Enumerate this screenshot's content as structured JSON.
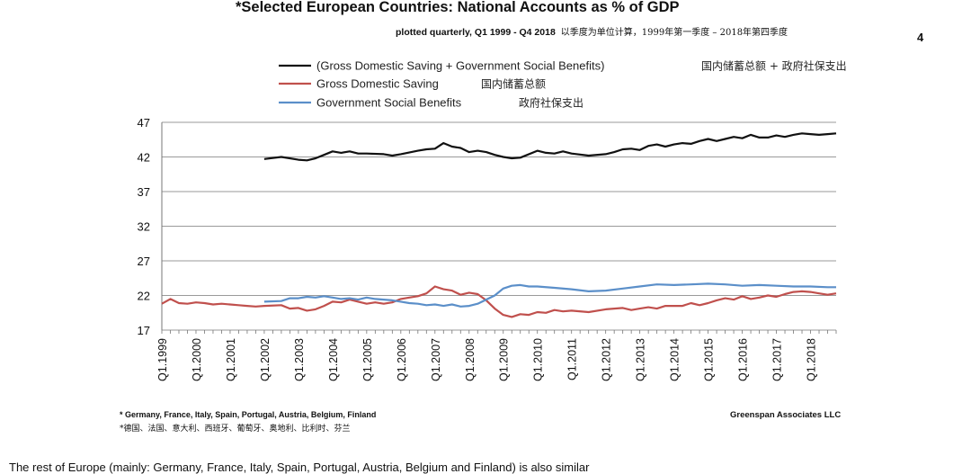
{
  "page": {
    "title": "*Selected European Countries: National Accounts as % of GDP",
    "subtitle_en": "plotted quarterly, Q1 1999 - Q4 2018",
    "subtitle_zh": "以季度为单位计算，1999年第一季度 – 2018年第四季度",
    "page_number": "4",
    "footnote_en": "* Germany, France, Italy, Spain, Portugal, Austria, Belgium, Finland",
    "footnote_zh": "*德国、法国、意大利、西班牙、葡萄牙、奥地利、比利时、芬兰",
    "source": "Greenspan Associates LLC",
    "caption": "The rest of Europe (mainly: Germany, France, Italy, Spain, Portugal, Austria, Belgium and Finland) is also similar"
  },
  "chart_data": {
    "type": "line",
    "title": "*Selected European Countries: National Accounts as % of GDP",
    "xlabel": "",
    "ylabel": "",
    "ylim": [
      17,
      47
    ],
    "yticks": [
      "47",
      "42",
      "37",
      "32",
      "27",
      "22",
      "17"
    ],
    "xticks": [
      "Q1.1999",
      "Q1.2000",
      "Q1.2001",
      "Q1.2002",
      "Q1.2003",
      "Q1.2004",
      "Q1.2005",
      "Q1.2006",
      "Q1.2007",
      "Q1.2008",
      "Q1.2009",
      "Q1.2010",
      "Q1.2011",
      "Q1.2012",
      "Q1.2013",
      "Q1.2014",
      "Q1.2015",
      "Q1.2016",
      "Q1.2017",
      "Q1.2018"
    ],
    "legend_position": "top-left",
    "grid": true,
    "series": [
      {
        "name": "(Gross Domestic Saving + Government Social Benefits)",
        "name_zh": "国内储蓄总额 + 政府社保支出",
        "color": "#111111",
        "x": [
          2002.0,
          2002.5,
          2003.0,
          2003.25,
          2003.5,
          2003.75,
          2004.0,
          2004.25,
          2004.5,
          2004.75,
          2005.0,
          2005.5,
          2005.75,
          2006.0,
          2006.5,
          2006.75,
          2007.0,
          2007.25,
          2007.5,
          2007.75,
          2008.0,
          2008.25,
          2008.5,
          2008.75,
          2009.0,
          2009.25,
          2009.5,
          2010.0,
          2010.25,
          2010.5,
          2010.75,
          2011.0,
          2011.5,
          2012.0,
          2012.25,
          2012.5,
          2012.75,
          2013.0,
          2013.25,
          2013.5,
          2013.75,
          2014.0,
          2014.25,
          2014.5,
          2014.75,
          2015.0,
          2015.25,
          2015.5,
          2015.75,
          2016.0,
          2016.25,
          2016.5,
          2016.75,
          2017.0,
          2017.25,
          2017.5,
          2017.75,
          2018.0,
          2018.25,
          2018.5,
          2018.75
        ],
        "values": [
          41.7,
          42.0,
          41.6,
          41.5,
          41.8,
          42.3,
          42.8,
          42.6,
          42.8,
          42.5,
          42.5,
          42.4,
          42.2,
          42.4,
          42.9,
          43.1,
          43.2,
          44.0,
          43.5,
          43.3,
          42.7,
          42.9,
          42.7,
          42.3,
          42.0,
          41.8,
          41.9,
          42.9,
          42.6,
          42.5,
          42.8,
          42.5,
          42.2,
          42.4,
          42.7,
          43.1,
          43.2,
          43.0,
          43.6,
          43.8,
          43.5,
          43.8,
          44.0,
          43.9,
          44.3,
          44.6,
          44.3,
          44.6,
          44.9,
          44.7,
          45.2,
          44.8,
          44.8,
          45.1,
          44.9,
          45.2,
          45.4,
          45.3,
          45.2,
          45.3,
          45.4
        ]
      },
      {
        "name": "Gross Domestic Saving",
        "name_zh": "国内储蓄总额",
        "color": "#c0504d",
        "x": [
          1999.0,
          1999.25,
          1999.5,
          1999.75,
          2000.0,
          2000.25,
          2000.5,
          2000.75,
          2001.0,
          2001.25,
          2001.5,
          2001.75,
          2002.0,
          2002.5,
          2002.75,
          2003.0,
          2003.25,
          2003.5,
          2003.75,
          2004.0,
          2004.25,
          2004.5,
          2004.75,
          2005.0,
          2005.25,
          2005.5,
          2005.75,
          2006.0,
          2006.25,
          2006.5,
          2006.75,
          2007.0,
          2007.25,
          2007.5,
          2007.75,
          2008.0,
          2008.25,
          2008.5,
          2008.75,
          2009.0,
          2009.25,
          2009.5,
          2009.75,
          2010.0,
          2010.25,
          2010.5,
          2010.75,
          2011.0,
          2011.5,
          2012.0,
          2012.5,
          2012.75,
          2013.0,
          2013.25,
          2013.5,
          2013.75,
          2014.0,
          2014.25,
          2014.5,
          2014.75,
          2015.0,
          2015.25,
          2015.5,
          2015.75,
          2016.0,
          2016.25,
          2016.5,
          2016.75,
          2017.0,
          2017.25,
          2017.5,
          2017.75,
          2018.0,
          2018.25,
          2018.5,
          2018.75
        ],
        "values": [
          20.8,
          21.5,
          20.9,
          20.8,
          21.0,
          20.9,
          20.7,
          20.8,
          20.7,
          20.6,
          20.5,
          20.4,
          20.5,
          20.6,
          20.1,
          20.2,
          19.8,
          20.0,
          20.5,
          21.1,
          21.0,
          21.4,
          21.1,
          20.8,
          21.0,
          20.8,
          21.0,
          21.5,
          21.7,
          21.9,
          22.3,
          23.3,
          22.9,
          22.7,
          22.1,
          22.4,
          22.2,
          21.3,
          20.1,
          19.2,
          18.9,
          19.3,
          19.2,
          19.6,
          19.5,
          19.9,
          19.7,
          19.8,
          19.6,
          20.0,
          20.2,
          19.9,
          20.1,
          20.3,
          20.1,
          20.5,
          20.5,
          20.5,
          20.9,
          20.6,
          20.9,
          21.3,
          21.6,
          21.4,
          21.9,
          21.5,
          21.7,
          22.0,
          21.8,
          22.2,
          22.5,
          22.6,
          22.5,
          22.3,
          22.1,
          22.3
        ]
      },
      {
        "name": "Government Social Benefits",
        "name_zh": "政府社保支出",
        "color": "#5b8fc9",
        "x": [
          2002.0,
          2002.5,
          2002.75,
          2003.0,
          2003.25,
          2003.5,
          2003.75,
          2004.0,
          2004.25,
          2004.5,
          2004.75,
          2005.0,
          2005.25,
          2005.5,
          2005.75,
          2006.0,
          2006.25,
          2006.5,
          2006.75,
          2007.0,
          2007.25,
          2007.5,
          2007.75,
          2008.0,
          2008.25,
          2008.5,
          2008.75,
          2009.0,
          2009.25,
          2009.5,
          2009.75,
          2010.0,
          2010.5,
          2011.0,
          2011.5,
          2012.0,
          2012.5,
          2013.0,
          2013.5,
          2014.0,
          2014.5,
          2015.0,
          2015.5,
          2016.0,
          2016.5,
          2017.0,
          2017.5,
          2018.0,
          2018.5,
          2018.75
        ],
        "values": [
          21.1,
          21.2,
          21.6,
          21.6,
          21.8,
          21.7,
          21.9,
          21.7,
          21.5,
          21.6,
          21.4,
          21.7,
          21.5,
          21.4,
          21.3,
          21.1,
          20.9,
          20.8,
          20.6,
          20.7,
          20.5,
          20.7,
          20.4,
          20.5,
          20.8,
          21.4,
          22.0,
          23.0,
          23.4,
          23.5,
          23.3,
          23.3,
          23.1,
          22.9,
          22.6,
          22.7,
          23.0,
          23.3,
          23.6,
          23.5,
          23.6,
          23.7,
          23.6,
          23.4,
          23.5,
          23.4,
          23.3,
          23.3,
          23.2,
          23.2
        ]
      }
    ]
  }
}
